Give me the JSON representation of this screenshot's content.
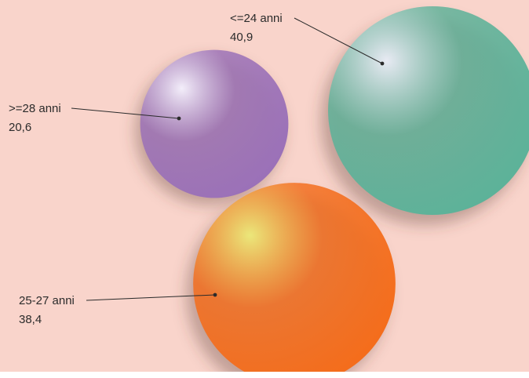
{
  "chart_data": {
    "type": "bubble",
    "series": [
      {
        "name": "<=24 anni",
        "value": "40,9",
        "numeric_value": 40.9,
        "color": "#5db299",
        "highlight": "#e8eaf3"
      },
      {
        "name": ">=28 anni",
        "value": "20,6",
        "numeric_value": 20.6,
        "color": "#9b71b8",
        "highlight": "#f3eefa"
      },
      {
        "name": "25-27 anni",
        "value": "38,4",
        "numeric_value": 38.4,
        "color": "#f46d1c",
        "highlight": "#ebe77a"
      }
    ]
  }
}
